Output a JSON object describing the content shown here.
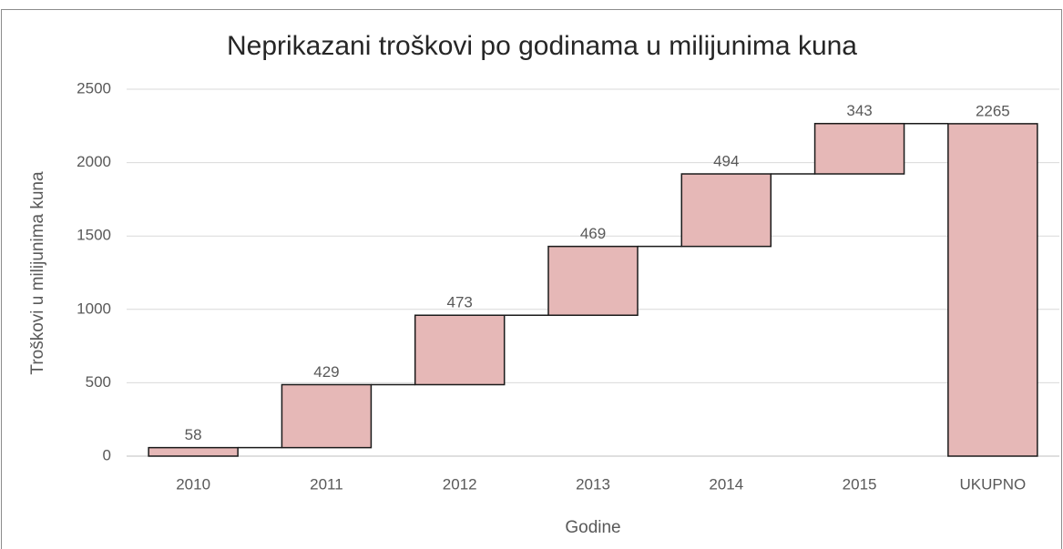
{
  "chart_data": {
    "type": "waterfall",
    "title": "Neprikazani troškovi po godinama u milijunima kuna",
    "x_label": "Godine",
    "y_label": "Troškovi u milijunima kuna",
    "categories": [
      "2010",
      "2011",
      "2012",
      "2013",
      "2014",
      "2015",
      "UKUPNO"
    ],
    "values": [
      58,
      429,
      473,
      469,
      494,
      343,
      2265
    ],
    "last_is_total": true,
    "color": "#e6b8b7",
    "ylim": [
      0,
      2500
    ],
    "yticks": [
      0,
      500,
      1000,
      1500,
      2000,
      2500
    ],
    "grid": true
  }
}
